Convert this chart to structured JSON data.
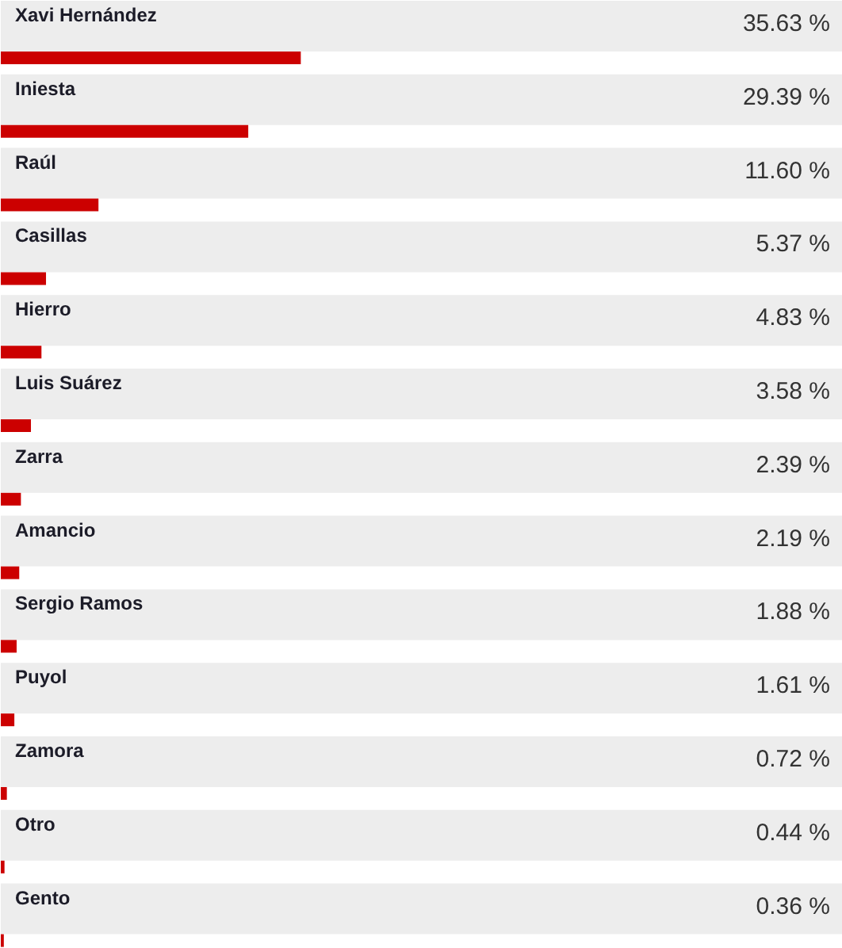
{
  "chart_data": {
    "type": "bar",
    "orientation": "horizontal",
    "color": "#cc0000",
    "xlim": [
      0,
      100
    ],
    "tick_labels": false,
    "categories": [
      "Xavi Hernández",
      "Iniesta",
      "Raúl",
      "Casillas",
      "Hierro",
      "Luis Suárez",
      "Zarra",
      "Amancio",
      "Sergio Ramos",
      "Puyol",
      "Zamora",
      "Otro",
      "Gento"
    ],
    "values": [
      35.63,
      29.39,
      11.6,
      5.37,
      4.83,
      3.58,
      2.39,
      2.19,
      1.88,
      1.61,
      0.72,
      0.44,
      0.36
    ],
    "value_labels": [
      "35.63 %",
      "29.39 %",
      "11.60 %",
      "5.37 %",
      "4.83 %",
      "3.58 %",
      "2.39 %",
      "2.19 %",
      "1.88 %",
      "1.61 %",
      "0.72 %",
      "0.44 %",
      "0.36 %"
    ]
  }
}
